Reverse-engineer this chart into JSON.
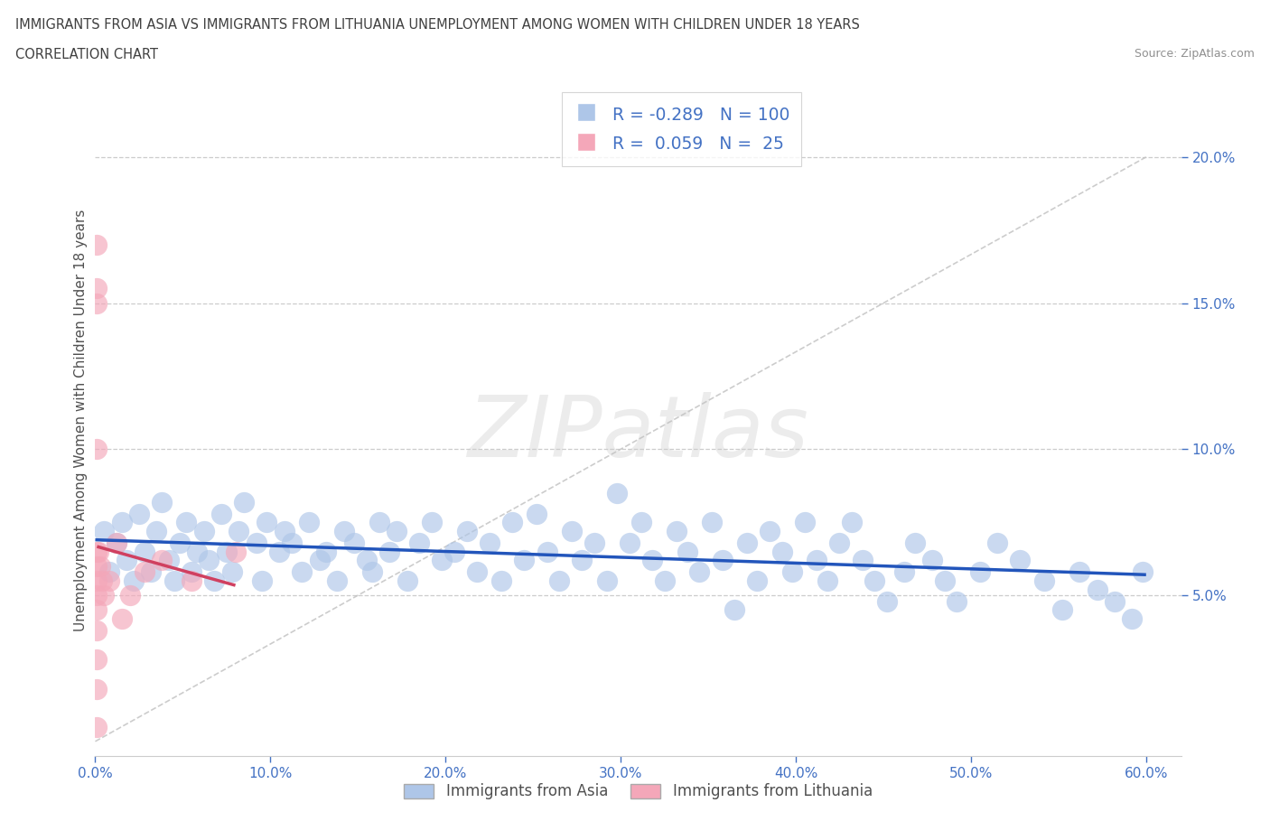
{
  "title_line1": "IMMIGRANTS FROM ASIA VS IMMIGRANTS FROM LITHUANIA UNEMPLOYMENT AMONG WOMEN WITH CHILDREN UNDER 18 YEARS",
  "title_line2": "CORRELATION CHART",
  "source": "Source: ZipAtlas.com",
  "ylabel": "Unemployment Among Women with Children Under 18 years",
  "xlim": [
    0.0,
    0.62
  ],
  "ylim": [
    -0.005,
    0.225
  ],
  "R_asia": -0.289,
  "N_asia": 100,
  "R_lith": 0.059,
  "N_lith": 25,
  "asia_color": "#aec6e8",
  "lith_color": "#f4a7b9",
  "asia_line_color": "#2255bb",
  "lith_line_color": "#d04060",
  "watermark_text": "ZIPatlas",
  "background_color": "#ffffff",
  "title_color": "#404040",
  "tick_color": "#4472c4",
  "grid_color": "#cccccc",
  "legend_label_asia": "Immigrants from Asia",
  "legend_label_lith": "Immigrants from Lithuania",
  "asia_x": [
    0.005,
    0.008,
    0.012,
    0.015,
    0.018,
    0.022,
    0.025,
    0.028,
    0.032,
    0.035,
    0.038,
    0.042,
    0.045,
    0.048,
    0.052,
    0.055,
    0.058,
    0.062,
    0.065,
    0.068,
    0.072,
    0.075,
    0.078,
    0.082,
    0.085,
    0.092,
    0.095,
    0.098,
    0.105,
    0.108,
    0.112,
    0.118,
    0.122,
    0.128,
    0.132,
    0.138,
    0.142,
    0.148,
    0.155,
    0.158,
    0.162,
    0.168,
    0.172,
    0.178,
    0.185,
    0.192,
    0.198,
    0.205,
    0.212,
    0.218,
    0.225,
    0.232,
    0.238,
    0.245,
    0.252,
    0.258,
    0.265,
    0.272,
    0.278,
    0.285,
    0.292,
    0.298,
    0.305,
    0.312,
    0.318,
    0.325,
    0.332,
    0.338,
    0.345,
    0.352,
    0.358,
    0.365,
    0.372,
    0.378,
    0.385,
    0.392,
    0.398,
    0.405,
    0.412,
    0.418,
    0.425,
    0.432,
    0.438,
    0.445,
    0.452,
    0.462,
    0.468,
    0.478,
    0.485,
    0.492,
    0.505,
    0.515,
    0.528,
    0.542,
    0.552,
    0.562,
    0.572,
    0.582,
    0.592,
    0.598
  ],
  "asia_y": [
    0.072,
    0.058,
    0.068,
    0.075,
    0.062,
    0.055,
    0.078,
    0.065,
    0.058,
    0.072,
    0.082,
    0.062,
    0.055,
    0.068,
    0.075,
    0.058,
    0.065,
    0.072,
    0.062,
    0.055,
    0.078,
    0.065,
    0.058,
    0.072,
    0.082,
    0.068,
    0.055,
    0.075,
    0.065,
    0.072,
    0.068,
    0.058,
    0.075,
    0.062,
    0.065,
    0.055,
    0.072,
    0.068,
    0.062,
    0.058,
    0.075,
    0.065,
    0.072,
    0.055,
    0.068,
    0.075,
    0.062,
    0.065,
    0.072,
    0.058,
    0.068,
    0.055,
    0.075,
    0.062,
    0.078,
    0.065,
    0.055,
    0.072,
    0.062,
    0.068,
    0.055,
    0.085,
    0.068,
    0.075,
    0.062,
    0.055,
    0.072,
    0.065,
    0.058,
    0.075,
    0.062,
    0.045,
    0.068,
    0.055,
    0.072,
    0.065,
    0.058,
    0.075,
    0.062,
    0.055,
    0.068,
    0.075,
    0.062,
    0.055,
    0.048,
    0.058,
    0.068,
    0.062,
    0.055,
    0.048,
    0.058,
    0.068,
    0.062,
    0.055,
    0.045,
    0.058,
    0.052,
    0.048,
    0.042,
    0.058
  ],
  "lith_x": [
    0.001,
    0.001,
    0.001,
    0.001,
    0.001,
    0.001,
    0.001,
    0.001,
    0.001,
    0.001,
    0.001,
    0.001,
    0.001,
    0.002,
    0.003,
    0.004,
    0.005,
    0.008,
    0.012,
    0.015,
    0.02,
    0.028,
    0.038,
    0.055,
    0.08
  ],
  "lith_y": [
    0.17,
    0.155,
    0.15,
    0.1,
    0.065,
    0.06,
    0.055,
    0.05,
    0.045,
    0.038,
    0.028,
    0.018,
    0.005,
    0.065,
    0.06,
    0.055,
    0.05,
    0.055,
    0.068,
    0.042,
    0.05,
    0.058,
    0.062,
    0.055,
    0.065
  ]
}
